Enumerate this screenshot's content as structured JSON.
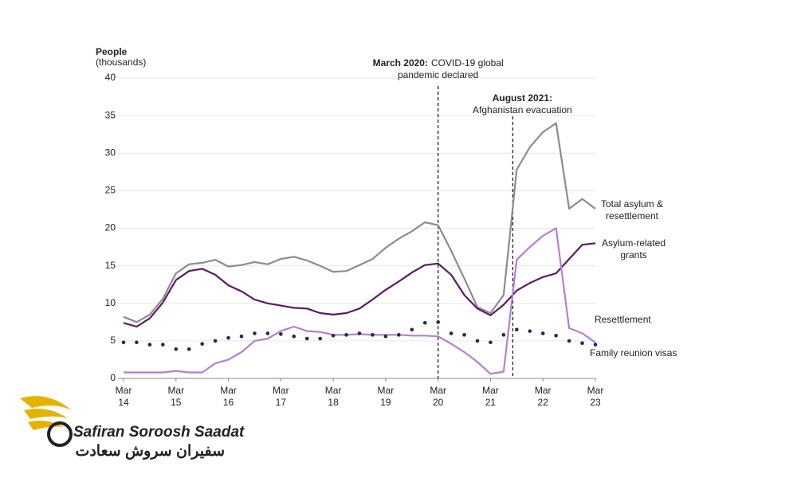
{
  "chart_data": {
    "type": "line",
    "y_label": "People",
    "y_label_sub": "(thousands)",
    "categories": [
      "Mar 14",
      null,
      null,
      null,
      "Mar 15",
      null,
      null,
      null,
      "Mar 16",
      null,
      null,
      null,
      "Mar 17",
      null,
      null,
      null,
      "Mar 18",
      null,
      null,
      null,
      "Mar 19",
      null,
      null,
      null,
      "Mar 20",
      null,
      null,
      null,
      "Mar 21",
      null,
      null,
      null,
      "Mar 22",
      null,
      null,
      null,
      "Mar 23"
    ],
    "ylim": [
      0,
      40
    ],
    "yticks": [
      0,
      5,
      10,
      15,
      20,
      25,
      30,
      35,
      40
    ],
    "grid": true,
    "series": [
      {
        "name": "Total asylum & resettlement",
        "color": "#8c8c8c",
        "style": "line",
        "values": [
          8.2,
          7.5,
          8.5,
          10.6,
          14.0,
          15.2,
          15.4,
          15.8,
          14.9,
          15.1,
          15.5,
          15.2,
          15.9,
          16.2,
          15.7,
          15.0,
          14.2,
          14.3,
          15.1,
          15.9,
          17.4,
          18.6,
          19.6,
          20.8,
          20.4,
          17.0,
          13.3,
          9.5,
          8.7,
          11.1,
          27.8,
          30.8,
          32.8,
          34.0,
          22.6,
          23.9,
          22.6
        ]
      },
      {
        "name": "Asylum-related grants",
        "color": "#5c1a63",
        "style": "line",
        "values": [
          7.4,
          6.9,
          8.0,
          10.1,
          13.1,
          14.3,
          14.6,
          13.8,
          12.4,
          11.6,
          10.5,
          10.0,
          9.7,
          9.4,
          9.3,
          8.7,
          8.5,
          8.7,
          9.3,
          10.5,
          11.8,
          12.9,
          14.1,
          15.1,
          15.3,
          13.8,
          11.1,
          9.3,
          8.4,
          9.8,
          11.7,
          12.7,
          13.5,
          14.0,
          15.9,
          17.8,
          18.0
        ]
      },
      {
        "name": "Resettlement",
        "color": "#b57fd0",
        "style": "line",
        "values": [
          0.8,
          0.8,
          0.8,
          0.8,
          1.0,
          0.8,
          0.8,
          2.0,
          2.5,
          3.5,
          5.0,
          5.3,
          6.3,
          6.9,
          6.3,
          6.2,
          5.8,
          5.8,
          5.9,
          5.8,
          5.8,
          5.8,
          5.7,
          5.7,
          5.6,
          4.6,
          3.5,
          2.2,
          0.6,
          0.9,
          15.8,
          17.5,
          19.0,
          20.0,
          6.7,
          6.0,
          4.8
        ]
      },
      {
        "name": "Family reunion visas",
        "color": "#1f2a56",
        "style": "dots",
        "values": [
          4.8,
          4.8,
          4.5,
          4.5,
          3.9,
          3.9,
          4.6,
          5.0,
          5.4,
          5.6,
          6.0,
          6.0,
          5.9,
          5.6,
          5.3,
          5.3,
          5.7,
          5.8,
          6.0,
          5.8,
          5.6,
          5.8,
          6.5,
          7.4,
          7.5,
          6.0,
          5.8,
          5.0,
          4.8,
          5.8,
          6.5,
          6.3,
          6.0,
          5.7,
          5.0,
          4.7,
          4.5
        ]
      }
    ],
    "annotations": [
      {
        "bold": "March 2020:",
        "text": "COVID-19 global",
        "line2": "pandemic declared"
      },
      {
        "bold": "August 2021:",
        "text": "Afghanistan evacuation"
      }
    ]
  },
  "watermark": {
    "brand": "Safiran Soroosh Saadat",
    "brand_fa": "سفیران سروش سعادت"
  }
}
